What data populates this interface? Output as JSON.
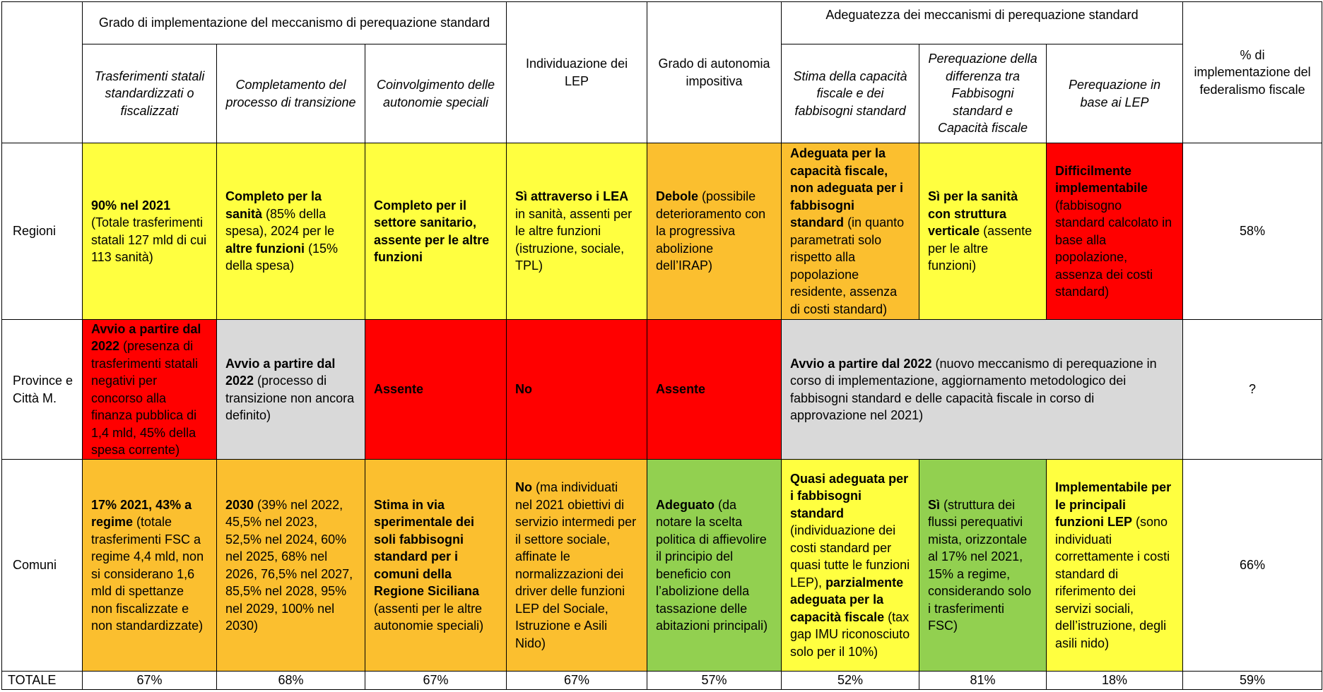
{
  "headers": {
    "group1": "Grado di implementazione del meccanismo di perequazione standard",
    "group2": "Adeguatezza dei meccanismi di perequazione standard",
    "lep": "Individuazione dei LEP",
    "autonomia": "Grado di autonomia impositiva",
    "pct": "% di implementazione del federalismo fiscale",
    "sub1": "Trasferimenti statali standardizzati o fiscalizzati",
    "sub2": "Completamento del processo di transizione",
    "sub3": "Coinvolgimento delle autonomie speciali",
    "sub4": "Stima della capacità fiscale e dei fabbisogni standard",
    "sub5": "Perequazione della differenza tra Fabbisogni standard e Capacità fiscale",
    "sub6": "Perequazione in base ai LEP"
  },
  "rows": {
    "regioni": {
      "label": "Regioni",
      "c1_b": "90% nel 2021",
      "c1_t": " (Totale trasferimenti statali 127 mld di cui 113 sanità)",
      "c2_b1": "Completo per la sanità",
      "c2_t1": " (85% della spesa), 2024 per le ",
      "c2_b2": "altre funzioni",
      "c2_t2": " (15% della spesa)",
      "c3_b": "Completo per il settore sanitario, assente per le altre funzioni",
      "c4_b": "Sì attraverso i LEA",
      "c4_t": " in sanità, assenti per le altre funzioni (istruzione, sociale, TPL)",
      "c5_b": "Debole",
      "c5_t": " (possibile deterioramento con la progressiva abolizione dell’IRAP)",
      "c6_b": "Adeguata per la capacità fiscale, non adeguata per i fabbisogni standard",
      "c6_t": " (in quanto parametrati solo rispetto alla popolazione residente, assenza di costi standard)",
      "c7_b": "Sì per la sanità con struttura verticale",
      "c7_t": " (assente per le altre funzioni)",
      "c8_b": "Difficilmente implementabile",
      "c8_t": " (fabbisogno standard calcolato in base alla popolazione, assenza dei costi standard)",
      "pct": "58%"
    },
    "province": {
      "label": "Province e Città M.",
      "c1_b": "Avvio a partire dal 2022",
      "c1_t": " (presenza di trasferimenti statali negativi per concorso alla finanza pubblica di 1,4 mld, 45% della spesa corrente)",
      "c2_b": "Avvio a partire dal 2022",
      "c2_t": " (processo di transizione non ancora definito)",
      "c3": "Assente",
      "c4": "No",
      "c5": "Assente",
      "c6_b": "Avvio a partire dal 2022",
      "c6_t": " (nuovo meccanismo di perequazione in corso di implementazione, aggiornamento metodologico dei fabbisogni standard e delle capacità fiscale in corso di approvazione nel 2021)",
      "pct": "?"
    },
    "comuni": {
      "label": "Comuni",
      "c1_b": "17% 2021, 43% a regime",
      "c1_t": " (totale trasferimenti FSC a regime 4,4 mld, non si considerano 1,6 mld di spettanze non fiscalizzate e non standardizzate)",
      "c2_b": "2030",
      "c2_t": " (39% nel 2022, 45,5% nel 2023, 52,5% nel 2024, 60% nel 2025, 68% nel 2026, 76,5% nel 2027, 85,5% nel 2028, 95% nel 2029, 100% nel 2030)",
      "c3_b": "Stima in via sperimentale dei soli fabbisogni standard per i comuni della Regione Siciliana",
      "c3_t": " (assenti per le altre autonomie speciali)",
      "c4_b": "No",
      "c4_t": " (ma individuati nel 2021 obiettivi di servizio intermedi per il settore sociale, affinate le normalizzazioni dei driver delle funzioni LEP del Sociale, Istruzione e Asili Nido)",
      "c5_b": "Adeguato",
      "c5_t": " (da notare la scelta politica di affievolire il principio del beneficio con l’abolizione della tassazione delle abitazioni principali)",
      "c6_b1": "Quasi adeguata per i fabbisogni standard",
      "c6_t1": " (individuazione dei costi standard per quasi tutte le funzioni LEP), ",
      "c6_b2": "parzialmente adeguata per la capacità fiscale",
      "c6_t2": " (tax gap IMU riconosciuto solo per il 10%)",
      "c7_b": "Sì",
      "c7_t": " (struttura dei flussi perequativi mista, orizzontale al 17% nel 2021, 15% a regime, considerando solo i trasferimenti FSC)",
      "c8_b": "Implementabile per le principali funzioni LEP",
      "c8_t": " (sono individuati correttamente i costi standard di riferimento dei servizi sociali, dell’istruzione, degli asili nido)",
      "pct": "66%"
    },
    "totale": {
      "label": "TOTALE",
      "values": [
        "67%",
        "68%",
        "67%",
        "67%",
        "57%",
        "52%",
        "81%",
        "18%",
        "59%"
      ]
    }
  },
  "colors": {
    "yellow": "#ffff40",
    "orange": "#fbbf2f",
    "red": "#ff0000",
    "green": "#92d050",
    "grey": "#d9d9d9"
  }
}
